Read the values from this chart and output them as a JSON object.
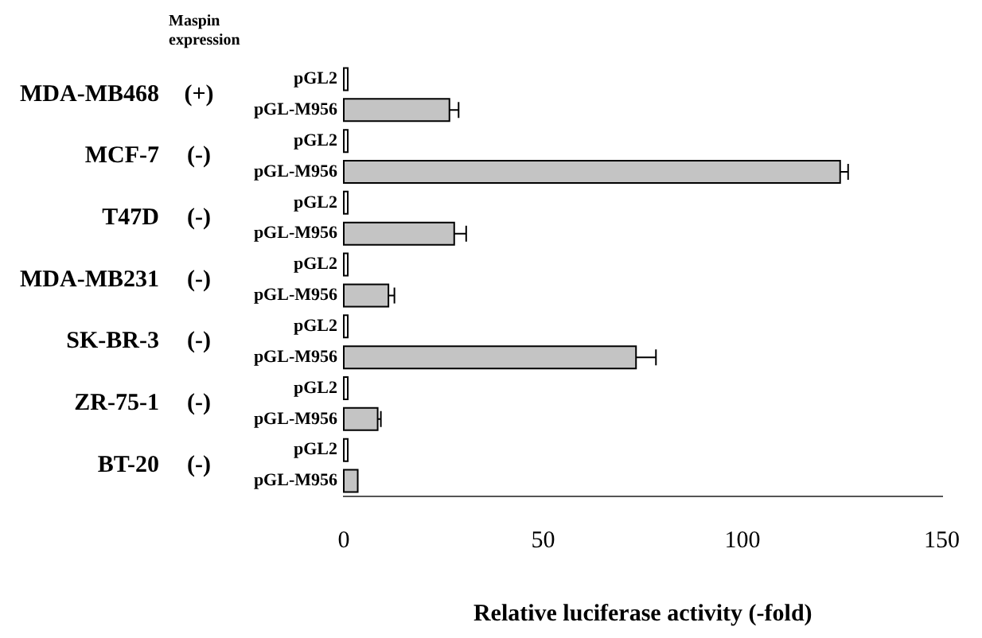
{
  "chart_data": {
    "type": "bar",
    "orientation": "horizontal",
    "xlabel": "Relative luciferase activity (-fold)",
    "categories": [
      "pGL2",
      "pGL-M956",
      "pGL2",
      "pGL-M956",
      "pGL2",
      "pGL-M956",
      "pGL2",
      "pGL-M956",
      "pGL2",
      "pGL-M956",
      "pGL2",
      "pGL-M956",
      "pGL2",
      "pGL-M956"
    ],
    "values": [
      1,
      26.5,
      1,
      124.5,
      1,
      27.7,
      1,
      11.2,
      1,
      73.3,
      1,
      8.5,
      1,
      3.5
    ],
    "colors": [
      "#ffffff",
      "#c4c4c4",
      "#ffffff",
      "#c4c4c4",
      "#ffffff",
      "#c4c4c4",
      "#ffffff",
      "#c4c4c4",
      "#ffffff",
      "#c4c4c4",
      "#ffffff",
      "#c4c4c4",
      "#ffffff",
      "#c4c4c4"
    ],
    "errors": [
      null,
      [
        26.5,
        28.8
      ],
      null,
      [
        124.5,
        126.5
      ],
      null,
      [
        27.7,
        30.7
      ],
      null,
      [
        11.2,
        12.7
      ],
      null,
      [
        73.3,
        78.3
      ],
      null,
      [
        8.5,
        9.3
      ],
      null,
      null
    ],
    "xlim": [
      0,
      150
    ],
    "xticks": [
      0,
      50,
      100,
      150
    ],
    "grid": false,
    "legend": false,
    "annotations": [
      "Maspin expression",
      "MDA-MB468",
      "(+)",
      "MCF-7",
      "(-)",
      "T47D",
      "(-)",
      "MDA-MB231",
      "(-)",
      "SK-BR-3",
      "(-)",
      "ZR-75-1",
      "(-)",
      "BT-20",
      "(-)"
    ]
  }
}
